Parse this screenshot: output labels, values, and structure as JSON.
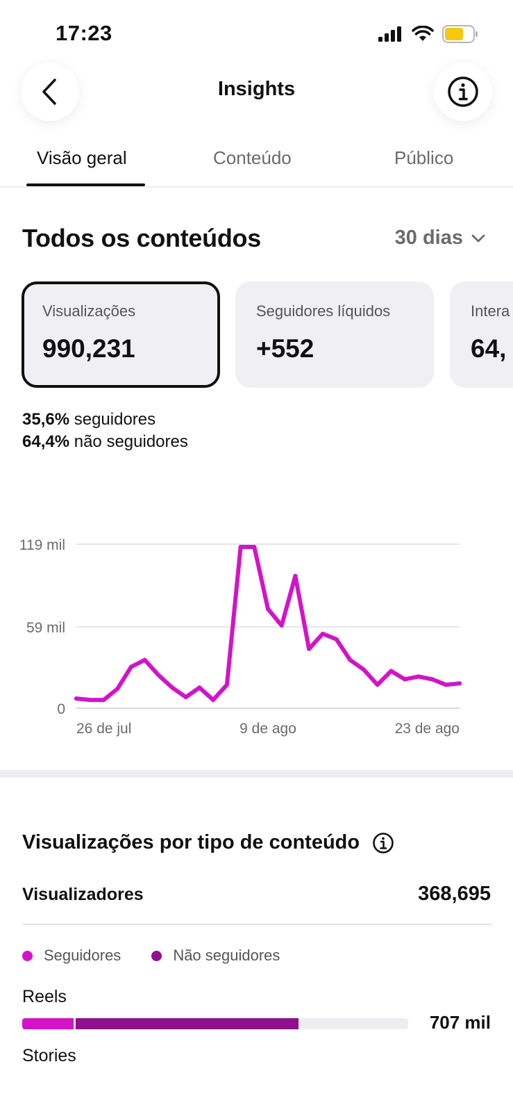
{
  "status_bar": {
    "time": "17:23",
    "icons": [
      "cellular-signal-icon",
      "wifi-icon",
      "battery-icon"
    ]
  },
  "header": {
    "title": "Insights",
    "back_icon": "chevron-left-icon",
    "info_icon": "info-icon"
  },
  "tabs": [
    {
      "label": "Visão geral",
      "active": true
    },
    {
      "label": "Conteúdo",
      "active": false
    },
    {
      "label": "Público",
      "active": false
    }
  ],
  "section": {
    "title": "Todos os conteúdos",
    "period": "30 dias"
  },
  "cards": [
    {
      "label": "Visualizações",
      "value": "990,231",
      "selected": true
    },
    {
      "label": "Seguidores líquidos",
      "value": "+552",
      "selected": false
    },
    {
      "label": "Intera",
      "value": "64,",
      "selected": false
    }
  ],
  "audience_split": [
    {
      "pct": "35,6%",
      "label": "seguidores"
    },
    {
      "pct": "64,4%",
      "label": "não seguidores"
    }
  ],
  "chart_data": {
    "type": "line",
    "title": "",
    "xlabel": "",
    "ylabel": "",
    "ylim": [
      0,
      119
    ],
    "y_ticks": [
      {
        "value": 0,
        "label": "0"
      },
      {
        "value": 59,
        "label": "59 mil"
      },
      {
        "value": 119,
        "label": "119 mil"
      }
    ],
    "x_tick_labels": [
      {
        "day": 0,
        "label": "26 de jul"
      },
      {
        "day": 14,
        "label": "9 de ago"
      },
      {
        "day": 28,
        "label": "23 de ago"
      }
    ],
    "grid": true,
    "color": "#d214c8",
    "series": [
      {
        "x": [
          0,
          1,
          2,
          3,
          4,
          5,
          6,
          7,
          8,
          9,
          10,
          11,
          12,
          13,
          14,
          15,
          16,
          17,
          18,
          19,
          20,
          21,
          22,
          23,
          24,
          25,
          26,
          27,
          28
        ],
        "values": [
          7,
          6,
          6,
          14,
          30,
          35,
          24,
          15,
          8,
          15,
          6,
          17,
          117,
          117,
          72,
          60,
          96,
          43,
          54,
          50,
          35,
          28,
          17,
          27,
          21,
          23,
          21,
          17,
          18
        ]
      }
    ]
  },
  "content_types": {
    "title": "Visualizações por tipo de conteúdo",
    "viewers_label": "Visualizadores",
    "viewers_value": "368,695",
    "legend": [
      {
        "label": "Seguidores",
        "color": "#d214c8"
      },
      {
        "label": "Não seguidores",
        "color": "#8f0f8e"
      }
    ],
    "rows": [
      {
        "label": "Reels",
        "value": "707 mil",
        "followers_fraction": 0.133,
        "non_followers_fraction": 0.582
      },
      {
        "label": "Stories"
      }
    ]
  }
}
